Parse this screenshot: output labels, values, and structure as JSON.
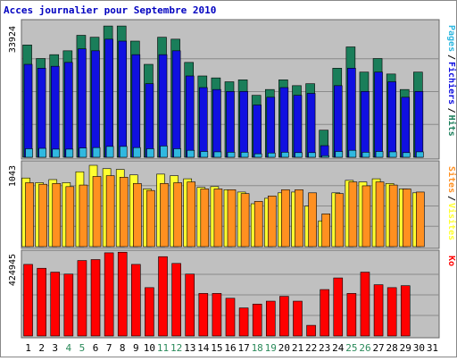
{
  "chart_data": {
    "type": "bar",
    "title": "Acces journalier pour Septembre 2010",
    "categories": [
      "1",
      "2",
      "3",
      "4",
      "5",
      "6",
      "7",
      "8",
      "9",
      "10",
      "11",
      "12",
      "13",
      "14",
      "15",
      "16",
      "17",
      "18",
      "19",
      "20",
      "21",
      "22",
      "23",
      "24",
      "25",
      "26",
      "27",
      "28",
      "29",
      "30",
      "31"
    ],
    "weekend_days": [
      "4",
      "5",
      "11",
      "12",
      "18",
      "19",
      "25",
      "26"
    ],
    "panels": [
      {
        "id": "top",
        "max_label": "33924",
        "ylim": [
          0,
          33924
        ],
        "legend": [
          "Pages",
          "Fichiers",
          "Hits"
        ],
        "series": [
          {
            "name": "Hits",
            "color": "#1a7e5a",
            "values": [
              29000,
              25500,
              26500,
              27500,
              31500,
              31000,
              33900,
              33900,
              30000,
              24000,
              31000,
              30500,
              24500,
              21000,
              20500,
              19500,
              20000,
              16000,
              17500,
              20000,
              18500,
              19000,
              7000,
              23000,
              28500,
              22000,
              25500,
              21500,
              17500,
              22000,
              0
            ]
          },
          {
            "name": "Fichiers",
            "color": "#1010e0",
            "values": [
              24000,
              23000,
              23500,
              24500,
              28000,
              27500,
              30500,
              30000,
              26500,
              19000,
              26500,
              27500,
              21000,
              18000,
              17500,
              17000,
              17000,
              13500,
              15500,
              18000,
              16000,
              16500,
              3000,
              18500,
              23000,
              17000,
              22000,
              19500,
              15500,
              17000,
              0
            ]
          },
          {
            "name": "Pages",
            "color": "#30b8e0",
            "values": [
              2200,
              2300,
              2100,
              2100,
              2400,
              2500,
              2800,
              2800,
              2500,
              2200,
              2900,
              2200,
              1800,
              1500,
              1400,
              1300,
              1300,
              900,
              1100,
              1300,
              1200,
              1200,
              400,
              1500,
              1800,
              1300,
              1500,
              1400,
              1200,
              1400,
              0
            ]
          }
        ]
      },
      {
        "id": "middle",
        "max_label": "1043",
        "ylim": [
          0,
          1043
        ],
        "legend": [
          "Sites",
          "Visites"
        ],
        "series": [
          {
            "name": "Visites",
            "color": "#ffff30",
            "values": [
              880,
              820,
              860,
              820,
              960,
              1043,
              1000,
              990,
              920,
              740,
              930,
              910,
              870,
              760,
              770,
              730,
              700,
              550,
              620,
              690,
              700,
              520,
              330,
              690,
              850,
              830,
              870,
              810,
              740,
              690,
              0
            ]
          },
          {
            "name": "Sites",
            "color": "#ff9020",
            "values": [
              820,
              800,
              810,
              770,
              790,
              900,
              910,
              890,
              810,
              720,
              810,
              820,
              830,
              740,
              740,
              730,
              680,
              580,
              650,
              730,
              730,
              690,
              420,
              680,
              830,
              780,
              830,
              790,
              740,
              700,
              0
            ]
          }
        ]
      },
      {
        "id": "bottom",
        "max_label": "424945",
        "ylim": [
          0,
          424945
        ],
        "legend": [
          "Ko"
        ],
        "series": [
          {
            "name": "Ko",
            "color": "#ff0000",
            "values": [
              370000,
              350000,
              330000,
              320000,
              390000,
              395000,
              430000,
              433000,
              370000,
              250000,
              410000,
              375000,
              320000,
              220000,
              220000,
              195000,
              145000,
              165000,
              180000,
              205000,
              180000,
              55000,
              240000,
              300000,
              220000,
              330000,
              265000,
              250000,
              260000,
              0,
              0
            ]
          }
        ]
      }
    ],
    "grid": true
  }
}
